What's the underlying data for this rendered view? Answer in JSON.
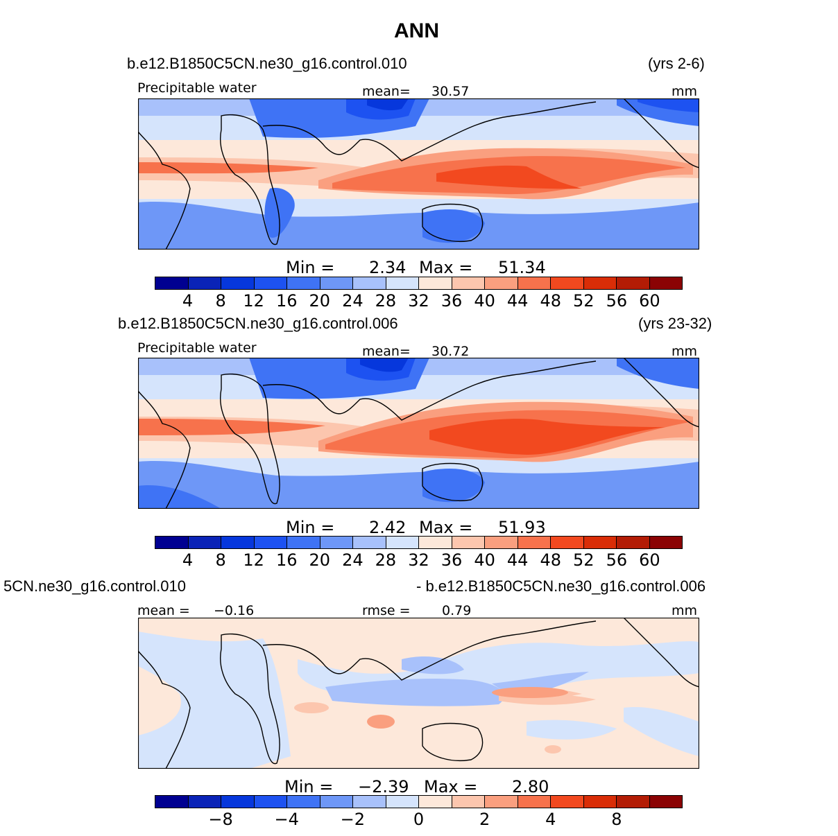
{
  "title": "ANN",
  "colors": {
    "scale": [
      "#000091",
      "#0a23b7",
      "#0637dc",
      "#1d52f1",
      "#3f73f5",
      "#6e97f7",
      "#a8c1fb",
      "#d5e4fc",
      "#fde8da",
      "#fcc6ae",
      "#fa9f7f",
      "#f7724c",
      "#f2491f",
      "#d92d07",
      "#b31c05",
      "#8b0304"
    ],
    "land_outline": "#000000"
  },
  "panels": [
    {
      "case": "b.e12.B1850C5CN.ne30_g16.control.010",
      "years": "(yrs 2-6)",
      "variable": "Precipitable water",
      "mean_label": "mean=",
      "mean_value": "30.57",
      "units": "mm",
      "min_label": "Min =",
      "min_value": "2.34",
      "max_label": "Max =",
      "max_value": "51.34",
      "ticks": [
        "4",
        "8",
        "12",
        "16",
        "20",
        "24",
        "28",
        "32",
        "36",
        "40",
        "44",
        "48",
        "52",
        "56",
        "60"
      ]
    },
    {
      "case": "b.e12.B1850C5CN.ne30_g16.control.006",
      "years": "(yrs 23-32)",
      "variable": "Precipitable water",
      "mean_label": "mean=",
      "mean_value": "30.72",
      "units": "mm",
      "min_label": "Min =",
      "min_value": "2.42",
      "max_label": "Max =",
      "max_value": "51.93",
      "ticks": [
        "4",
        "8",
        "12",
        "16",
        "20",
        "24",
        "28",
        "32",
        "36",
        "40",
        "44",
        "48",
        "52",
        "56",
        "60"
      ]
    },
    {
      "case_left": "5CN.ne30_g16.control.010",
      "case_right": "- b.e12.B1850C5CN.ne30_g16.control.006",
      "mean_label": "mean =",
      "mean_value": "−0.16",
      "rmse_label": "rmse =",
      "rmse_value": "0.79",
      "units": "mm",
      "min_label": "Min =",
      "min_value": "−2.39",
      "max_label": "Max =",
      "max_value": "2.80",
      "ticks": [
        "−8",
        "−4",
        "−2",
        "0",
        "2",
        "4",
        "8"
      ]
    }
  ]
}
